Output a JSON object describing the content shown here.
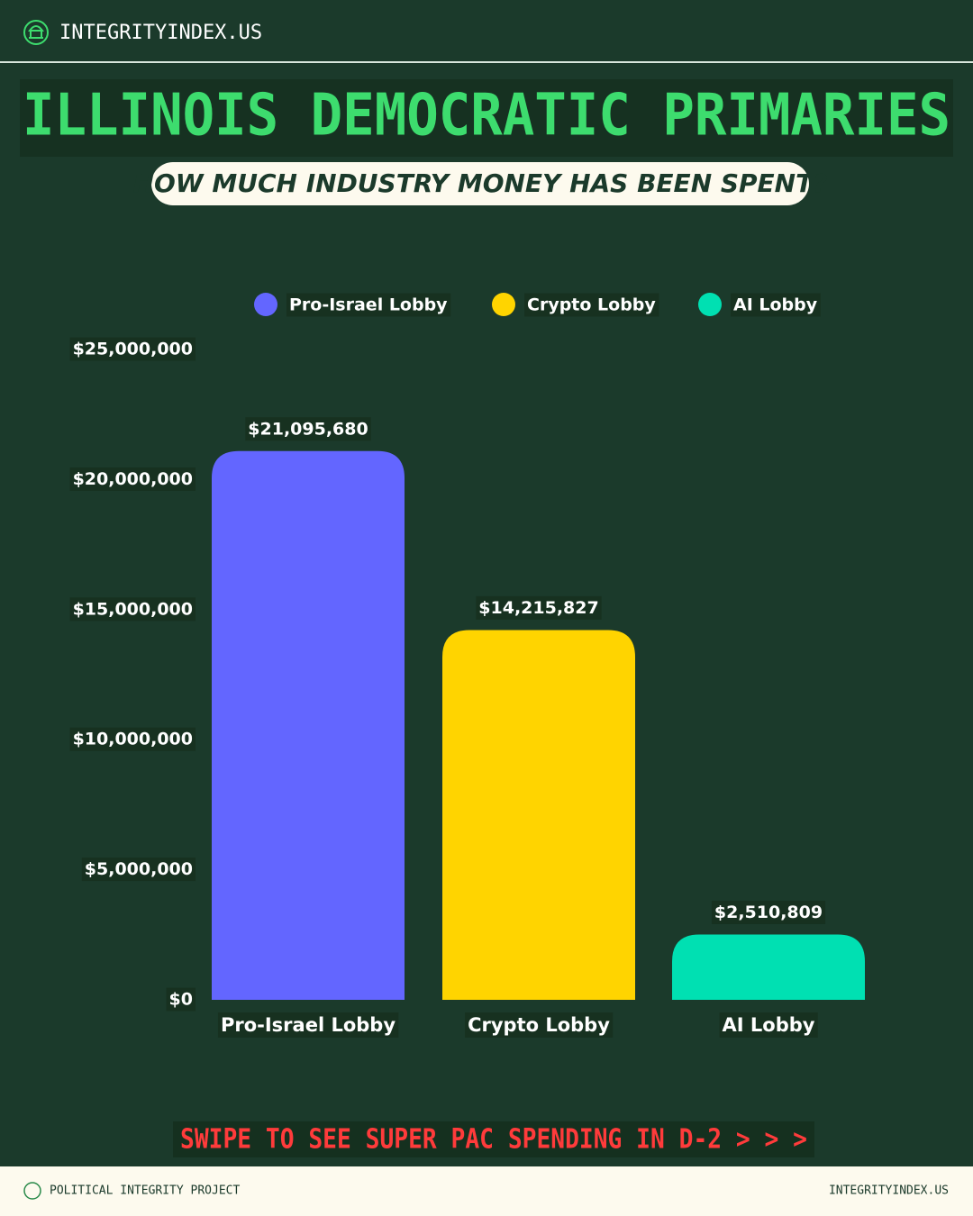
{
  "header": {
    "site": "INTEGRITYINDEX.US"
  },
  "chart_data": {
    "type": "bar",
    "title": "ILLINOIS DEMOCRATIC PRIMARIES",
    "subtitle": "HOW MUCH INDUSTRY MONEY HAS BEEN SPENT?",
    "categories": [
      "Pro-Israel Lobby",
      "Crypto Lobby",
      "AI Lobby"
    ],
    "values": [
      21095680,
      14215827,
      2510809
    ],
    "value_labels": [
      "$21,095,680",
      "$14,215,827",
      "$2,510,809"
    ],
    "colors": [
      "#6366ff",
      "#ffd400",
      "#00e0b2"
    ],
    "ylim": [
      0,
      25000000
    ],
    "yticks": [
      {
        "value": 0,
        "label": "$0"
      },
      {
        "value": 5000000,
        "label": "$5,000,000"
      },
      {
        "value": 10000000,
        "label": "$10,000,000"
      },
      {
        "value": 15000000,
        "label": "$15,000,000"
      },
      {
        "value": 20000000,
        "label": "$20,000,000"
      },
      {
        "value": 25000000,
        "label": "$25,000,000"
      }
    ],
    "grid": false,
    "legend": "top"
  },
  "call_to_action": "SWIPE TO SEE SUPER PAC SPENDING IN D-2 > > >",
  "footer": {
    "left": "POLITICAL INTEGRITY PROJECT",
    "right": "INTEGRITYINDEX.US"
  }
}
